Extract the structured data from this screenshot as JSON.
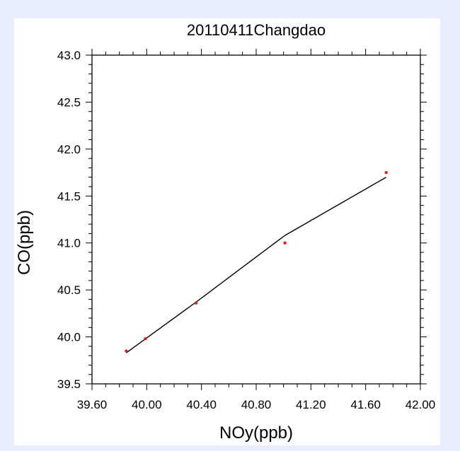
{
  "chart_data": {
    "type": "scatter",
    "title": "20110411Changdao",
    "xlabel": "NOy(ppb)",
    "ylabel": "CO(ppb)",
    "xlim": [
      39.6,
      42.0
    ],
    "ylim": [
      39.5,
      43.0
    ],
    "xticks": [
      39.6,
      40.0,
      40.4,
      40.8,
      41.2,
      41.6,
      42.0
    ],
    "xtick_labels": [
      "39.60",
      "40.00",
      "40.40",
      "40.80",
      "41.20",
      "41.60",
      "42.00"
    ],
    "yticks": [
      39.5,
      40.0,
      40.5,
      41.0,
      41.5,
      42.0,
      42.5,
      43.0
    ],
    "ytick_labels": [
      "39.5",
      "40.0",
      "40.5",
      "41.0",
      "41.5",
      "42.0",
      "42.5",
      "43.0"
    ],
    "grid": false,
    "series": [
      {
        "kind": "points",
        "color": "#e02020",
        "x": [
          39.85,
          39.99,
          40.36,
          41.01,
          41.75
        ],
        "y": [
          39.85,
          39.98,
          40.36,
          41.0,
          41.75
        ]
      },
      {
        "kind": "fit-line",
        "color": "#000000",
        "x": [
          39.85,
          40.36,
          41.01,
          41.75
        ],
        "y": [
          39.83,
          40.37,
          41.08,
          41.7
        ]
      }
    ]
  }
}
